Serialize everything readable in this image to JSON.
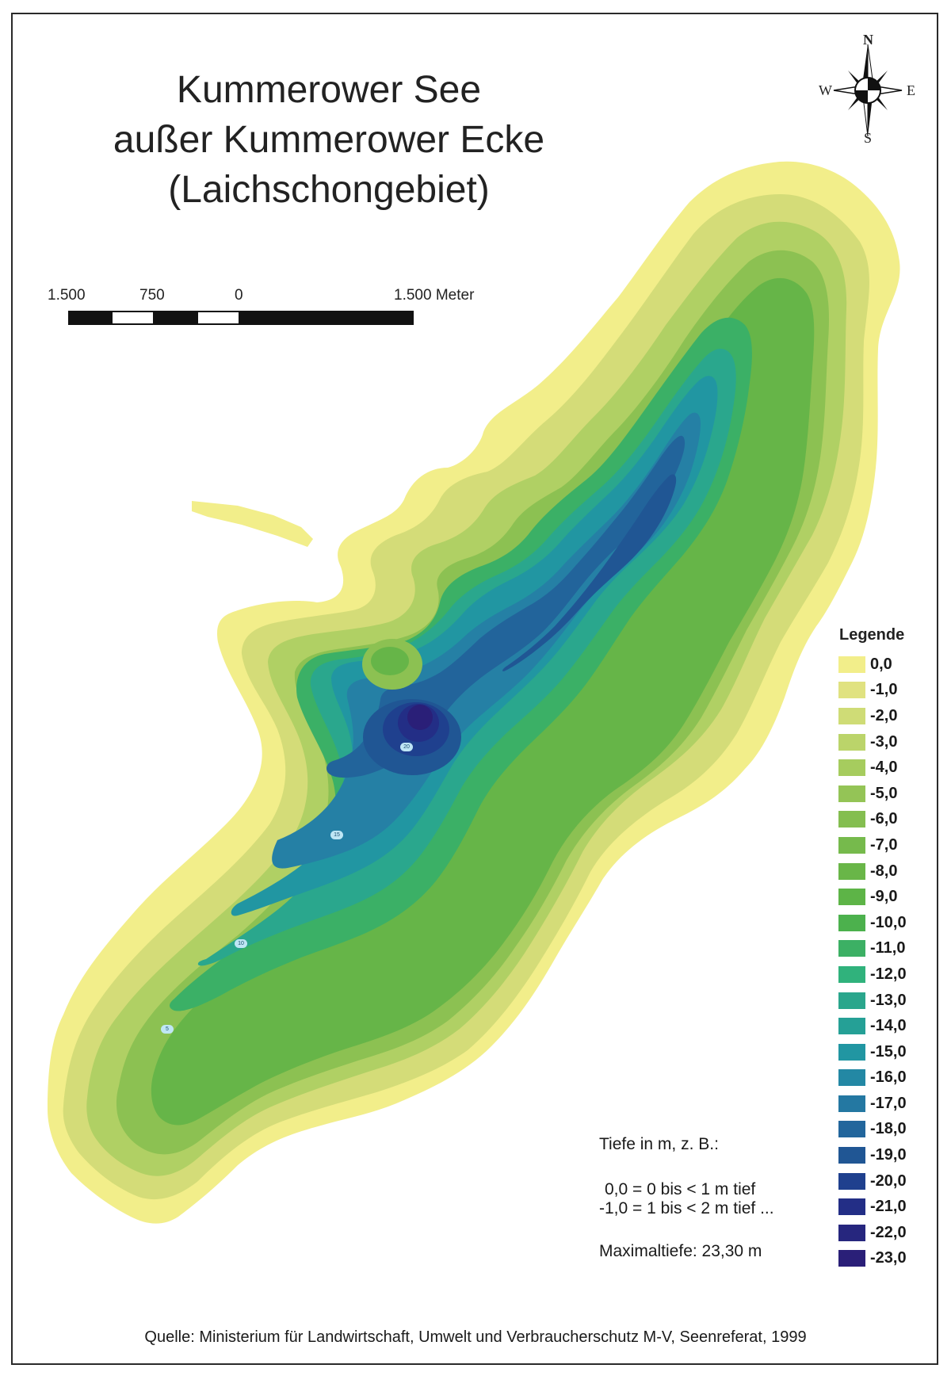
{
  "title": {
    "line1": "Kummerower See",
    "line2": "außer Kummerower Ecke",
    "line3": "(Laichschongebiet)"
  },
  "scale": {
    "labels": [
      "1.500",
      "750",
      "0",
      "1.500 Meter"
    ]
  },
  "compass": {
    "n": "N",
    "e": "E",
    "s": "S",
    "w": "W"
  },
  "legend": {
    "title": "Legende",
    "items": [
      {
        "label": "0,0",
        "color": "#f2ee8a"
      },
      {
        "label": "-1,0",
        "color": "#e0e280"
      },
      {
        "label": "-2,0",
        "color": "#cfdc76"
      },
      {
        "label": "-3,0",
        "color": "#bbd46a"
      },
      {
        "label": "-4,0",
        "color": "#a6cc5e"
      },
      {
        "label": "-5,0",
        "color": "#94c456"
      },
      {
        "label": "-6,0",
        "color": "#84be50"
      },
      {
        "label": "-7,0",
        "color": "#76ba4c"
      },
      {
        "label": "-8,0",
        "color": "#69b648"
      },
      {
        "label": "-9,0",
        "color": "#5db447"
      },
      {
        "label": "-10,0",
        "color": "#4cb14d"
      },
      {
        "label": "-11,0",
        "color": "#3cb064"
      },
      {
        "label": "-12,0",
        "color": "#30b27c"
      },
      {
        "label": "-13,0",
        "color": "#2aa68c"
      },
      {
        "label": "-14,0",
        "color": "#25a096"
      },
      {
        "label": "-15,0",
        "color": "#2196a2"
      },
      {
        "label": "-16,0",
        "color": "#2388a4"
      },
      {
        "label": "-17,0",
        "color": "#2478a2"
      },
      {
        "label": "-18,0",
        "color": "#22669c"
      },
      {
        "label": "-19,0",
        "color": "#205694"
      },
      {
        "label": "-20,0",
        "color": "#1f408e"
      },
      {
        "label": "-21,0",
        "color": "#232e86"
      },
      {
        "label": "-22,0",
        "color": "#26267e"
      },
      {
        "label": "-23,0",
        "color": "#2a1f78"
      }
    ]
  },
  "depth_labels": [
    "20",
    "15",
    "10",
    "5"
  ],
  "notes": {
    "line1": "Tiefe in m, z. B.:",
    "line2": "0,0 = 0 bis < 1 m tief",
    "line3": "-1,0 = 1 bis < 2 m tief ...",
    "line4": "Maximaltiefe: 23,30 m"
  },
  "source": "Quelle: Ministerium für Landwirtschaft, Umwelt und Verbraucherschutz M-V, Seenreferat, 1999"
}
